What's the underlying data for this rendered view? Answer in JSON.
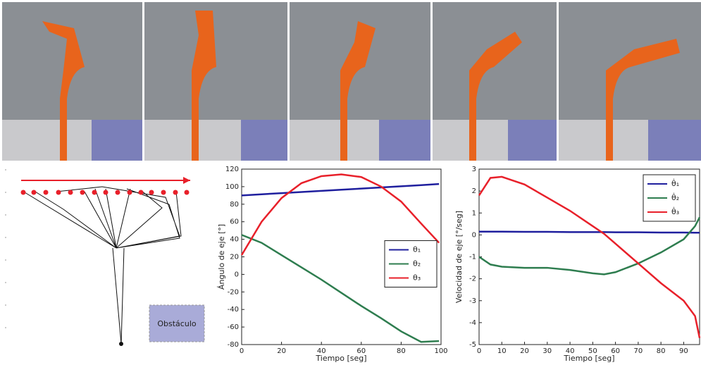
{
  "diagram": {
    "obstacle": "Obstáculo"
  },
  "chart_data": [
    {
      "type": "line",
      "xlabel": "Tiempo [seg]",
      "ylabel": "Ángulo de eje  [°]",
      "xlim": [
        0,
        100
      ],
      "ylim": [
        -80,
        120
      ],
      "xticks": [
        0,
        20,
        40,
        60,
        80,
        100
      ],
      "yticks": [
        -80,
        -60,
        -40,
        -20,
        0,
        20,
        40,
        60,
        80,
        100,
        120
      ],
      "legend": "center right",
      "x": [
        0,
        10,
        20,
        30,
        40,
        50,
        60,
        70,
        80,
        90,
        99
      ],
      "series": [
        {
          "name": "θ₁",
          "color": "#1f1f9e",
          "values": [
            90,
            91.3,
            92.6,
            93.9,
            95.2,
            96.5,
            97.8,
            99.1,
            100.4,
            101.7,
            103
          ]
        },
        {
          "name": "θ₂",
          "color": "#2e7d4f",
          "values": [
            45,
            36,
            22,
            8,
            -6,
            -21,
            -36,
            -50,
            -65,
            -77,
            -76
          ]
        },
        {
          "name": "θ₃",
          "color": "#e8202a",
          "values": [
            22,
            60,
            87,
            104,
            112,
            114,
            111,
            100,
            83,
            58,
            36
          ]
        }
      ]
    },
    {
      "type": "line",
      "xlabel": "Tiempo [seg]",
      "ylabel": "Velocidad de eje [°/seg]",
      "xlim": [
        0,
        97
      ],
      "ylim": [
        -5,
        3
      ],
      "xticks": [
        0,
        10,
        20,
        30,
        40,
        50,
        60,
        70,
        80,
        90
      ],
      "yticks": [
        -5,
        -4,
        -3,
        -2,
        -1,
        0,
        1,
        2,
        3
      ],
      "legend": "upper right",
      "x": [
        0,
        5,
        10,
        20,
        30,
        40,
        50,
        55,
        60,
        70,
        80,
        90,
        95,
        97
      ],
      "series": [
        {
          "name": "θ̇₁",
          "color": "#1f1f9e",
          "values": [
            0.15,
            0.15,
            0.15,
            0.14,
            0.14,
            0.13,
            0.13,
            0.13,
            0.12,
            0.12,
            0.11,
            0.11,
            0.1,
            0.1
          ]
        },
        {
          "name": "θ̇₂",
          "color": "#2e7d4f",
          "values": [
            -1,
            -1.35,
            -1.45,
            -1.5,
            -1.5,
            -1.6,
            -1.75,
            -1.8,
            -1.7,
            -1.3,
            -0.8,
            -0.2,
            0.4,
            0.8
          ]
        },
        {
          "name": "θ̇₃",
          "color": "#e8202a",
          "values": [
            1.8,
            2.6,
            2.65,
            2.3,
            1.7,
            1.1,
            0.4,
            0.05,
            -0.4,
            -1.3,
            -2.2,
            -3,
            -3.7,
            -4.7
          ]
        }
      ]
    }
  ]
}
